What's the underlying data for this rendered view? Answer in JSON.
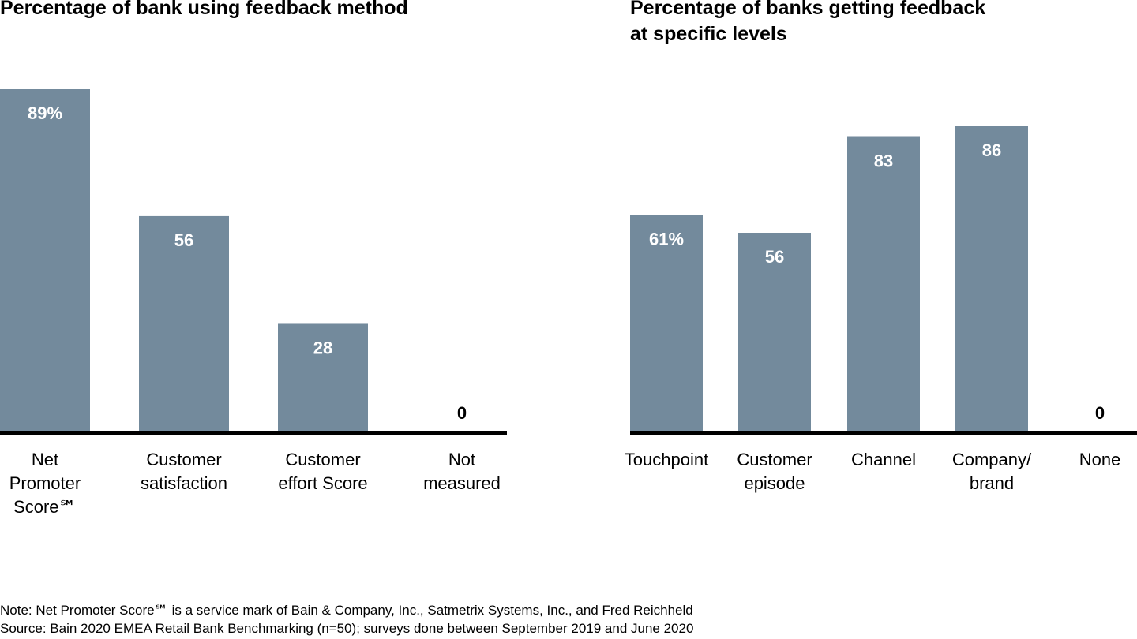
{
  "chart_data": [
    {
      "type": "bar",
      "title": "Percentage of bank using feedback method",
      "xlabel": "",
      "ylabel": "",
      "ylim": [
        0,
        100
      ],
      "grid": false,
      "categories": [
        [
          "Net",
          "Promoter",
          "Score℠"
        ],
        [
          "Customer",
          "satisfaction"
        ],
        [
          "Customer",
          "effort Score"
        ],
        [
          "Not",
          "measured"
        ]
      ],
      "values": [
        89,
        56,
        28,
        0
      ],
      "data_labels": [
        "89%",
        "56",
        "28",
        "0"
      ],
      "bar_color": "#738a9c"
    },
    {
      "type": "bar",
      "title": "Percentage of banks getting feedback at specific levels",
      "title_lines": [
        "Percentage of banks getting feedback",
        "at specific levels"
      ],
      "xlabel": "",
      "ylabel": "",
      "ylim": [
        0,
        100
      ],
      "grid": false,
      "categories": [
        [
          "Touchpoint"
        ],
        [
          "Customer",
          "episode"
        ],
        [
          "Channel"
        ],
        [
          "Company/",
          "brand"
        ],
        [
          "None"
        ]
      ],
      "values": [
        61,
        56,
        83,
        86,
        0
      ],
      "data_labels": [
        "61%",
        "56",
        "83",
        "86",
        "0"
      ],
      "bar_color": "#738a9c"
    }
  ],
  "footer": {
    "note": "Note: Net Promoter Score℠ is a service mark of Bain & Company, Inc., Satmetrix Systems, Inc., and Fred Reichheld",
    "source": "Source: Bain 2020 EMEA Retail Bank Benchmarking (n=50); surveys done between September 2019 and June 2020"
  }
}
